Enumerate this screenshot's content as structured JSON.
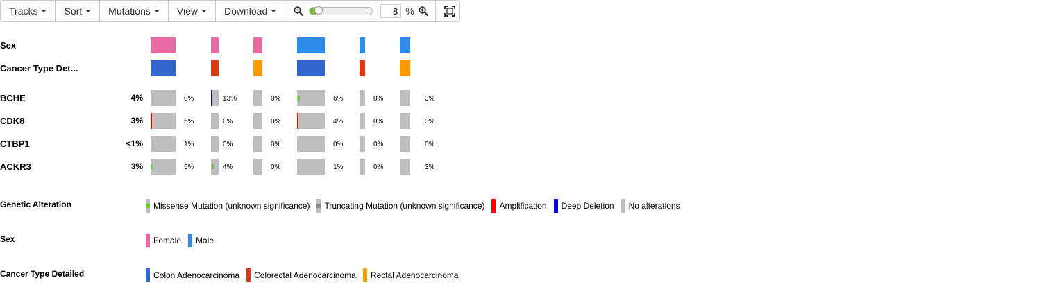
{
  "toolbar": {
    "tracks_label": "Tracks",
    "sort_label": "Sort",
    "mutations_label": "Mutations",
    "view_label": "View",
    "download_label": "Download",
    "zoom_value": "8",
    "zoom_unit": "%",
    "zoom_level": 0.08
  },
  "colors": {
    "female": "#e66ba2",
    "male": "#2b8be6",
    "colon": "#3366cc",
    "colorectal": "#dc3912",
    "rectal": "#ff9900",
    "no_alteration": "#bebebe",
    "missense": "#66cc33",
    "truncating": "#8a8a8a",
    "amplification": "#ff0000",
    "deep_deletion": "#0000ff"
  },
  "clinical_tracks": [
    {
      "label": "Sex",
      "values": [
        "Female",
        "Female",
        "Female",
        "Male",
        "Male",
        "Male"
      ]
    },
    {
      "label": "Cancer Type Det...",
      "values": [
        "Colon Adenocarcinoma",
        "Colorectal Adenocarcinoma",
        "Rectal Adenocarcinoma",
        "Colon Adenocarcinoma",
        "Colorectal Adenocarcinoma",
        "Rectal Adenocarcinoma"
      ]
    }
  ],
  "genes": [
    {
      "name": "BCHE",
      "pct": "4%",
      "cells": [
        {
          "pct": "0%",
          "alterations": []
        },
        {
          "pct": "13%",
          "alterations": [
            "deep_deletion"
          ]
        },
        {
          "pct": "0%",
          "alterations": []
        },
        {
          "pct": "6%",
          "alterations": [
            "missense"
          ]
        },
        {
          "pct": "0%",
          "alterations": []
        },
        {
          "pct": "3%",
          "alterations": []
        }
      ]
    },
    {
      "name": "CDK8",
      "pct": "3%",
      "cells": [
        {
          "pct": "5%",
          "alterations": [
            "amplification"
          ]
        },
        {
          "pct": "0%",
          "alterations": []
        },
        {
          "pct": "0%",
          "alterations": []
        },
        {
          "pct": "4%",
          "alterations": [
            "amplification"
          ]
        },
        {
          "pct": "0%",
          "alterations": []
        },
        {
          "pct": "3%",
          "alterations": []
        }
      ]
    },
    {
      "name": "CTBP1",
      "pct": "<1%",
      "cells": [
        {
          "pct": "1%",
          "alterations": []
        },
        {
          "pct": "0%",
          "alterations": []
        },
        {
          "pct": "0%",
          "alterations": []
        },
        {
          "pct": "0%",
          "alterations": []
        },
        {
          "pct": "0%",
          "alterations": []
        },
        {
          "pct": "0%",
          "alterations": []
        }
      ]
    },
    {
      "name": "ACKR3",
      "pct": "3%",
      "cells": [
        {
          "pct": "5%",
          "alterations": [
            "missense"
          ]
        },
        {
          "pct": "4%",
          "alterations": [
            "missense"
          ]
        },
        {
          "pct": "0%",
          "alterations": []
        },
        {
          "pct": "1%",
          "alterations": []
        },
        {
          "pct": "0%",
          "alterations": []
        },
        {
          "pct": "3%",
          "alterations": []
        }
      ]
    }
  ],
  "legends": {
    "genetic_alteration": {
      "title": "Genetic Alteration",
      "items": [
        {
          "label": "Missense Mutation (unknown significance)",
          "kind": "missense"
        },
        {
          "label": "Truncating Mutation (unknown significance)",
          "kind": "truncating"
        },
        {
          "label": "Amplification",
          "kind": "amplification"
        },
        {
          "label": "Deep Deletion",
          "kind": "deep_deletion"
        },
        {
          "label": "No alterations",
          "kind": "none"
        }
      ]
    },
    "sex": {
      "title": "Sex",
      "items": [
        {
          "label": "Female",
          "kind": "female"
        },
        {
          "label": "Male",
          "kind": "male"
        }
      ]
    },
    "cancer_type": {
      "title": "Cancer Type Detailed",
      "items": [
        {
          "label": "Colon Adenocarcinoma",
          "kind": "colon"
        },
        {
          "label": "Colorectal Adenocarcinoma",
          "kind": "colorectal"
        },
        {
          "label": "Rectal Adenocarcinoma",
          "kind": "rectal"
        }
      ]
    }
  }
}
